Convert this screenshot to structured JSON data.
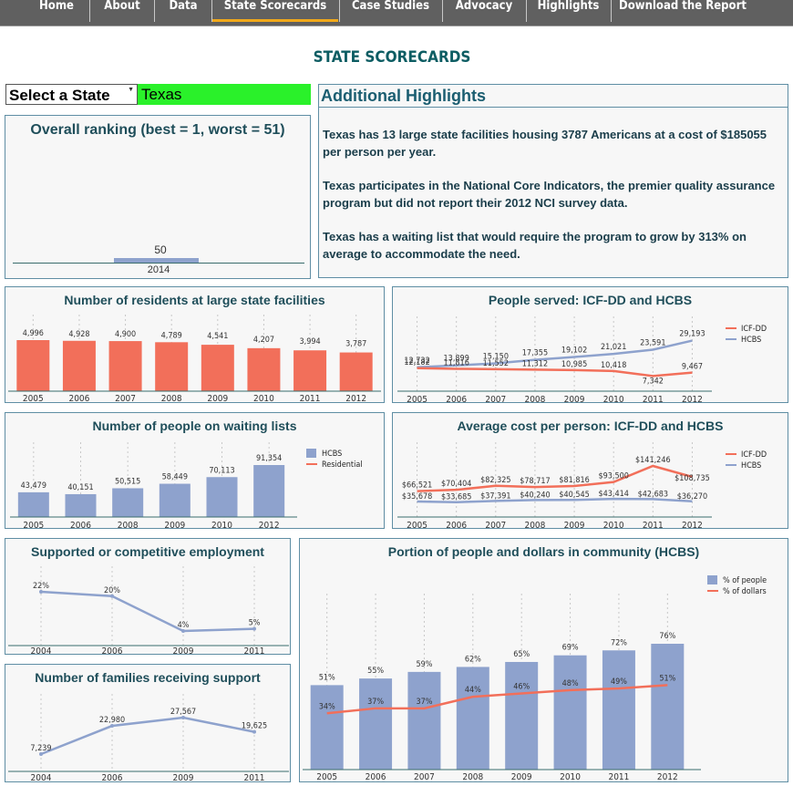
{
  "nav": {
    "items": [
      "Home",
      "About",
      "Data",
      "State Scorecards",
      "Case Studies",
      "Advocacy",
      "Highlights",
      "Download the Report"
    ],
    "active_index": 3,
    "active_color": "#f2a91a"
  },
  "page_title": "STATE SCORECARDS",
  "state_selector": {
    "label": "Select a State",
    "value": "Texas",
    "highlight_color": "#2af12a"
  },
  "ranking": {
    "title": "Overall ranking (best = 1, worst = 51)",
    "year": "2014",
    "value": 50,
    "value_label": "50"
  },
  "highlights": {
    "title": "Additional Highlights",
    "paragraphs": [
      "Texas has 13 large state facilities housing 3787 Americans at a cost of $185055 per person per year.",
      "Texas participates in the National Core Indicators, the premier quality assurance program but did not report their 2012 NCI survey data.",
      "Texas has a waiting list that would require the program to grow by 313% on average to accommodate the need."
    ]
  },
  "colors": {
    "accent": "#0d5d63",
    "red": "#f26f5a",
    "blue": "#8ea2cd",
    "border": "#5f8ea4"
  },
  "chart_data": [
    {
      "id": "residents",
      "type": "bar",
      "title": "Number of residents at large state facilities",
      "categories": [
        "2005",
        "2006",
        "2007",
        "2008",
        "2009",
        "2010",
        "2011",
        "2012"
      ],
      "values": [
        4996,
        4928,
        4900,
        4789,
        4541,
        4207,
        3994,
        3787
      ],
      "labels": [
        "4,996",
        "4,928",
        "4,900",
        "4,789",
        "4,541",
        "4,207",
        "3,994",
        "3,787"
      ]
    },
    {
      "id": "served",
      "type": "line",
      "title": "People served: ICF-DD and HCBS",
      "categories": [
        "2005",
        "2006",
        "2007",
        "2008",
        "2009",
        "2010",
        "2011",
        "2012"
      ],
      "series": [
        {
          "name": "ICF-DD",
          "values": [
            12182,
            11816,
            11552,
            11312,
            10985,
            10418,
            7342,
            9467
          ],
          "labels": [
            "12,182",
            "11,816",
            "11,552",
            "11,312",
            "10,985",
            "10,418",
            "7,342",
            "9,467"
          ]
        },
        {
          "name": "HCBS",
          "values": [
            12732,
            13899,
            15150,
            17355,
            19102,
            21021,
            23591,
            29193
          ],
          "labels": [
            "12,732",
            "13,899",
            "15,150",
            "17,355",
            "19,102",
            "21,021",
            "23,591",
            "29,193"
          ]
        }
      ]
    },
    {
      "id": "waiting",
      "type": "bar",
      "title": "Number of people on waiting lists",
      "categories": [
        "2005",
        "2006",
        "2008",
        "2009",
        "2010",
        "2012"
      ],
      "values": [
        43479,
        40151,
        50515,
        58449,
        70113,
        91354
      ],
      "labels": [
        "43,479",
        "40,151",
        "50,515",
        "58,449",
        "70,113",
        "91,354"
      ],
      "legend": [
        "HCBS",
        "Residential"
      ]
    },
    {
      "id": "cost",
      "type": "line",
      "title": "Average cost per person: ICF-DD and HCBS",
      "categories": [
        "2005",
        "2006",
        "2007",
        "2008",
        "2009",
        "2010",
        "2011",
        "2012"
      ],
      "series": [
        {
          "name": "ICF-DD",
          "values": [
            66521,
            70404,
            82325,
            78717,
            81816,
            93500,
            141246,
            108735
          ],
          "labels": [
            "$66,521",
            "$70,404",
            "$82,325",
            "$78,717",
            "$81,816",
            "$93,500",
            "$141,246",
            "$108,735"
          ]
        },
        {
          "name": "HCBS",
          "values": [
            35678,
            33685,
            37391,
            40240,
            40545,
            43414,
            42683,
            36270
          ],
          "labels": [
            "$35,678",
            "$33,685",
            "$37,391",
            "$40,240",
            "$40,545",
            "$43,414",
            "$42,683",
            "$36,270"
          ]
        }
      ]
    },
    {
      "id": "employment",
      "type": "line",
      "title": "Supported or competitive employment",
      "categories": [
        "2004",
        "2006",
        "2009",
        "2011"
      ],
      "values": [
        22,
        20,
        4,
        5
      ],
      "labels": [
        "22%",
        "20%",
        "4%",
        "5%"
      ]
    },
    {
      "id": "families",
      "type": "line",
      "title": "Number of families receiving support",
      "categories": [
        "2004",
        "2006",
        "2009",
        "2011"
      ],
      "values": [
        7239,
        22980,
        27567,
        19625
      ],
      "labels": [
        "7,239",
        "22,980",
        "27,567",
        "19,625"
      ]
    },
    {
      "id": "community",
      "type": "bar",
      "title": "Portion of people and dollars in community (HCBS)",
      "categories": [
        "2005",
        "2006",
        "2007",
        "2008",
        "2009",
        "2010",
        "2011",
        "2012"
      ],
      "series": [
        {
          "name": "% of people",
          "values": [
            51,
            55,
            59,
            62,
            65,
            69,
            72,
            76
          ],
          "labels": [
            "51%",
            "55%",
            "59%",
            "62%",
            "65%",
            "69%",
            "72%",
            "76%"
          ]
        },
        {
          "name": "% of dollars",
          "values": [
            34,
            37,
            37,
            44,
            46,
            48,
            49,
            51
          ],
          "labels": [
            "34%",
            "37%",
            "37%",
            "44%",
            "46%",
            "48%",
            "49%",
            "51%"
          ]
        }
      ]
    }
  ]
}
